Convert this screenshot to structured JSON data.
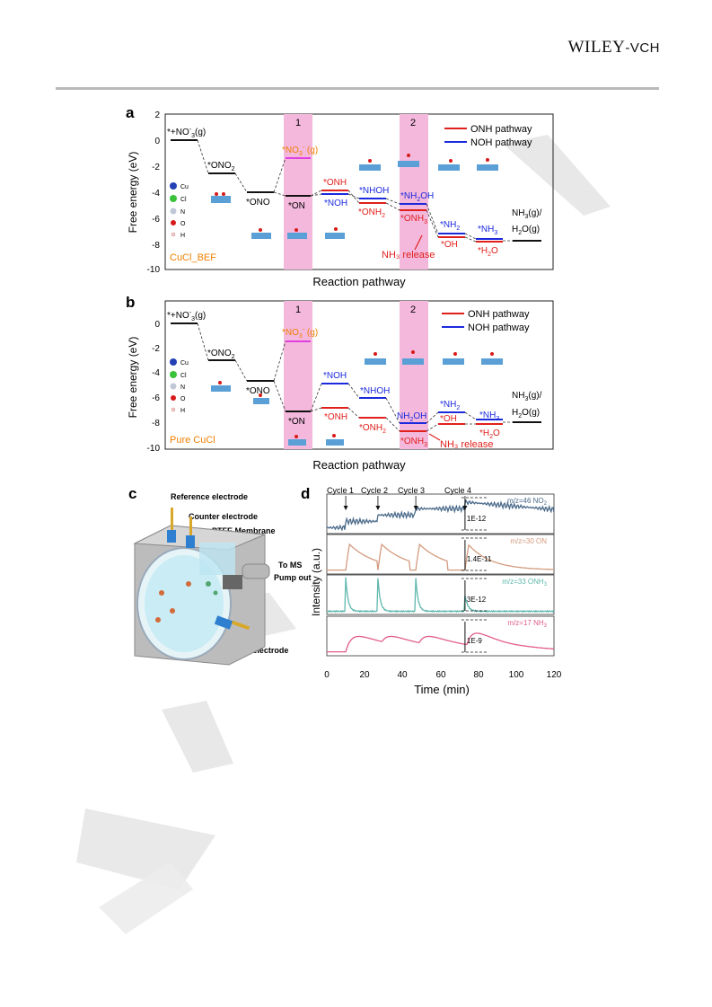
{
  "header": {
    "brand_main": "WILEY",
    "brand_suffix": "-VCH"
  },
  "panel_a": {
    "letter": "a",
    "ylabel": "Free energy (eV)",
    "xlabel": "Reaction pathway",
    "yticks": [
      "2",
      "0",
      "-2",
      "-4",
      "-6",
      "-8",
      "-10"
    ],
    "zone1": "1",
    "zone2": "2",
    "legend_onh": "ONH pathway",
    "legend_noh": "NOH pathway",
    "catalyst": "CuCl_BEF",
    "labels": {
      "start": "*+NO",
      "ono2": "*ONO",
      "ono": "*ONO",
      "no3g": "*NO",
      "on": "*ON",
      "onh": "*ONH",
      "noh": "*NOH",
      "onh2": "*ONH",
      "nhoh": "*NHOH",
      "nh2oh": "*NH",
      "onh3": "*ONH",
      "nh2": "*NH",
      "oh": "*OH",
      "nh3": "*NH",
      "h2o": "*H",
      "product1": "NH",
      "product2": "H",
      "release": "NH₃ release"
    },
    "atoms": [
      "Cu",
      "Cl",
      "N",
      "O",
      "H"
    ]
  },
  "panel_b": {
    "letter": "b",
    "ylabel": "Free energy (eV)",
    "xlabel": "Reaction pathway",
    "yticks": [
      "0",
      "-2",
      "-4",
      "-6",
      "-8",
      "-10"
    ],
    "zone1": "1",
    "zone2": "2",
    "legend_onh": "ONH pathway",
    "legend_noh": "NOH pathway",
    "catalyst": "Pure CuCl",
    "labels": {
      "start": "*+NO",
      "ono2": "*ONO",
      "ono": "*ONO",
      "no3g": "*NO",
      "on": "*ON",
      "noh": "*NOH",
      "onh": "*ONH",
      "nhoh": "*NHOH",
      "onh2": "*ONH",
      "nh2oh": "NH",
      "onh3": "*ONH",
      "nh2": "*NH",
      "oh": "*OH",
      "nh3": "*NH",
      "h2o": "*H",
      "product1": "NH",
      "product2": "H",
      "release": "NH₃ release"
    },
    "atoms": [
      "Cu",
      "Cl",
      "N",
      "O",
      "H"
    ]
  },
  "panel_c": {
    "letter": "c",
    "reference": "Reference electrode",
    "counter": "Counter electrode",
    "membrane": "PTFE Membrane",
    "to_ms": "To MS",
    "pump_out": "Pump out",
    "working": "Working electrode"
  },
  "panel_d": {
    "letter": "d",
    "ylabel": "Intensity (a.u.)",
    "xlabel": "Time (min)",
    "xticks": [
      "0",
      "20",
      "40",
      "60",
      "80",
      "100",
      "120"
    ],
    "cycles": [
      "Cycle 1",
      "Cycle 2",
      "Cycle 3",
      "Cycle 4"
    ],
    "traces": [
      {
        "label": "m/z=46 NO",
        "scale": "1E-12",
        "color": "#4a6a8a"
      },
      {
        "label": "m/z=30 ON",
        "scale": "1.4E-11",
        "color": "#d39b7e"
      },
      {
        "label": "m/z=33 ONH",
        "scale": "3E-12",
        "color": "#5fb8ad"
      },
      {
        "label": "m/z=17 NH",
        "scale": "1E-9",
        "color": "#e25c8a"
      }
    ]
  },
  "chart_data": [
    {
      "type": "line",
      "title": "",
      "xlabel": "Reaction pathway",
      "ylabel": "Free energy (eV)",
      "ylim": [
        -10,
        2
      ],
      "series": [
        {
          "name": "ONH pathway",
          "values": [
            0,
            -2.8,
            -4.1,
            -4.4,
            -3.9,
            -4.7,
            -5.5,
            -7.5,
            -8.0,
            -7.8
          ]
        },
        {
          "name": "NOH pathway",
          "values": [
            0,
            -2.8,
            -4.1,
            -4.4,
            -4.2,
            -4.3,
            -4.5,
            -7.2,
            -7.6,
            -7.8
          ]
        }
      ]
    },
    {
      "type": "line",
      "title": "",
      "xlabel": "Reaction pathway",
      "ylabel": "Free energy (eV)",
      "ylim": [
        -10,
        1
      ],
      "series": [
        {
          "name": "ONH pathway",
          "values": [
            0,
            -3.0,
            -4.5,
            -7.0,
            -6.6,
            -7.5,
            -8.4,
            -7.9,
            -8.2,
            -7.8
          ]
        },
        {
          "name": "NOH pathway",
          "values": [
            0,
            -3.0,
            -4.5,
            -7.0,
            -4.7,
            -5.9,
            -7.9,
            -7.1,
            -7.6,
            -7.8
          ]
        }
      ]
    },
    {
      "type": "line",
      "title": "",
      "xlabel": "Time (min)",
      "ylabel": "Intensity (a.u.)",
      "xlim": [
        0,
        120
      ],
      "series": [
        {
          "name": "m/z=46 NO",
          "cycle_starts_min": [
            10,
            27,
            47,
            73
          ]
        },
        {
          "name": "m/z=30 ON",
          "cycle_starts_min": [
            10,
            27,
            47,
            73
          ]
        },
        {
          "name": "m/z=33 ONH",
          "cycle_starts_min": [
            10,
            27,
            47,
            73
          ]
        },
        {
          "name": "m/z=17 NH",
          "cycle_starts_min": [
            10,
            27,
            47,
            73
          ]
        }
      ]
    }
  ]
}
